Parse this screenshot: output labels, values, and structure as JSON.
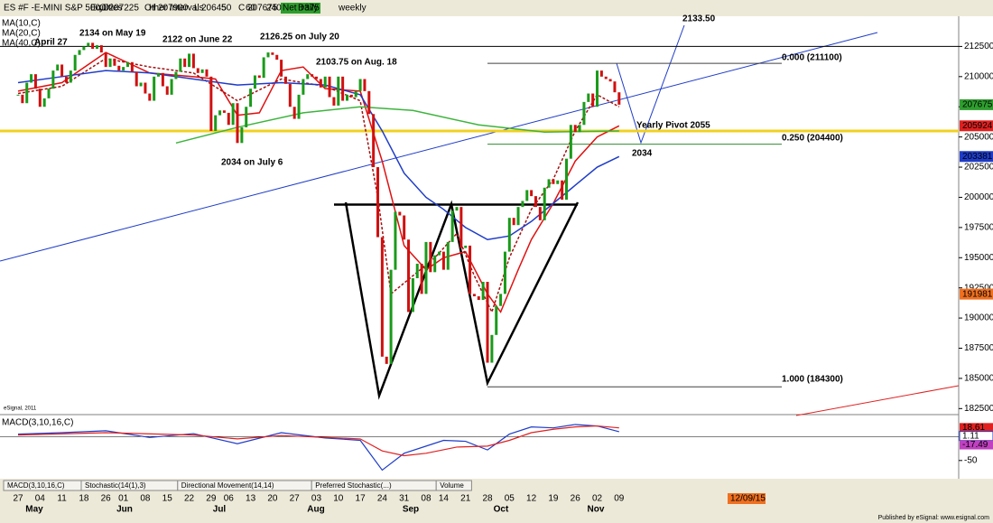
{
  "toolbar": {
    "symbol": "ES #F -E-MINI S&P 500,D",
    "open": "O 207225",
    "high": "H 207900",
    "low": "L 206450",
    "close": "C 207675",
    "net": "Net +375",
    "buttons": [
      "Equities",
      "Other Intervals",
      "5",
      "60",
      "240",
      "Daily",
      "weekly"
    ]
  },
  "chart_data": {
    "type": "candlestick",
    "closes": [
      208500,
      207800,
      209500,
      210200,
      209000,
      207500,
      208200,
      209000,
      210500,
      211000,
      210000,
      209500,
      210500,
      211800,
      212200,
      212500,
      212800,
      212300,
      212600,
      212000,
      210800,
      211500,
      210900,
      210500,
      210800,
      211200,
      210400,
      209200,
      209500,
      208600,
      208000,
      210000,
      210300,
      209200,
      208500,
      209800,
      210400,
      211500,
      210800,
      211900,
      210700,
      210300,
      210600,
      210000,
      205500,
      206800,
      207200,
      207000,
      206000,
      207800,
      204500,
      205800,
      207500,
      209000,
      210100,
      209900,
      211600,
      212000,
      211800,
      211400,
      210000,
      209400,
      207500,
      206500,
      208500,
      209800,
      210200,
      210000,
      209800,
      209100,
      210000,
      208300,
      207600,
      210000,
      208000,
      208500,
      208300,
      208800,
      209800,
      208800,
      206900,
      202500,
      196700,
      186800,
      186200,
      194000,
      198800,
      198500,
      196500,
      190500,
      193300,
      194500,
      192000,
      196300,
      193800,
      195200,
      195500,
      194000,
      196300,
      198900,
      199200,
      195800,
      196000,
      192000,
      191800,
      191500,
      193000,
      186300,
      188600,
      191000,
      192000,
      195500,
      198300,
      197700,
      199200,
      199700,
      200600,
      200100,
      199200,
      198100,
      200800,
      201500,
      201100,
      201400,
      199800,
      203200,
      206000,
      205400,
      206000,
      207900,
      208600,
      207500,
      210500,
      210000,
      209800,
      209600,
      208700,
      207675
    ],
    "ma": [
      {
        "name": "MA(10,C)",
        "color": "#e01010",
        "x": [
          0,
          10,
          20,
          30,
          40,
          45,
          50,
          55,
          60,
          65,
          70,
          78,
          83,
          88,
          93,
          97,
          102,
          107,
          110,
          114,
          117,
          122,
          127,
          132,
          137
        ],
        "values": [
          208800,
          209500,
          212000,
          210300,
          210000,
          209800,
          206800,
          207000,
          210500,
          210800,
          209000,
          208800,
          203000,
          196000,
          194000,
          195000,
          195500,
          192000,
          190500,
          194000,
          196500,
          199500,
          203000,
          205000,
          205924
        ]
      },
      {
        "name": "MA(20,C)",
        "color": "#a01010",
        "x": [
          0,
          10,
          20,
          30,
          40,
          50,
          60,
          70,
          78,
          82,
          85,
          90,
          95,
          100,
          104,
          108,
          112,
          117,
          122,
          127,
          132,
          137
        ],
        "values": [
          208600,
          209200,
          211500,
          210800,
          210300,
          208000,
          209800,
          209200,
          208000,
          200000,
          192000,
          193500,
          195000,
          197000,
          193500,
          190500,
          195000,
          199000,
          201500,
          205500,
          208500,
          207500
        ]
      },
      {
        "name": "MA(40,C)",
        "color": "#1e3cc8",
        "x": [
          0,
          10,
          20,
          30,
          40,
          50,
          60,
          70,
          78,
          83,
          88,
          93,
          97,
          102,
          107,
          112,
          117,
          122,
          127,
          132,
          137
        ],
        "values": [
          209500,
          210000,
          210500,
          210300,
          209800,
          209300,
          209500,
          209300,
          208500,
          205500,
          202000,
          200000,
          199000,
          197500,
          196500,
          196800,
          198000,
          199500,
          201000,
          202500,
          203381
        ]
      },
      {
        "color": "#3cb43c",
        "x": [
          36,
          50,
          65,
          78,
          90,
          105,
          120,
          137
        ],
        "values": [
          204500,
          205800,
          207000,
          207500,
          207200,
          206000,
          205400,
          205500
        ]
      }
    ],
    "ylim": [
      182000,
      215000
    ],
    "yticks": [
      212500,
      210000,
      207500,
      205000,
      202500,
      200000,
      197500,
      195000,
      192500,
      190000,
      187500,
      185000,
      182500
    ],
    "levels": [
      {
        "value": 212500,
        "color": "#000000"
      },
      {
        "value": 205500,
        "color": "#f0d020"
      },
      {
        "value": 211100,
        "color": "#404040"
      },
      {
        "value": 204400,
        "color": "#2e8b2e"
      },
      {
        "value": 184300,
        "color": "#404040"
      },
      {
        "value": 199400,
        "color": "#000000"
      }
    ],
    "price_labels": [
      {
        "value": 207675,
        "color": "#2e9e2e"
      },
      {
        "value": 205924,
        "color": "#e02020"
      },
      {
        "value": 203381,
        "color": "#1e3cc8"
      },
      {
        "value": 191981,
        "color": "#f07020"
      }
    ],
    "annotations": [
      "2134 on May 19",
      "2122 on June 22",
      "2126.25 on July 20",
      "2103.75 on Aug. 18",
      "2034 on July 6",
      "April 27",
      "2133.50",
      "Yearly Pivot 2055",
      "2034",
      "0.000 (211100)",
      "0.250 (204400)",
      "1.000 (184300)"
    ],
    "date_labels": [
      "27",
      "04",
      "11",
      "18",
      "26",
      "01",
      "08",
      "15",
      "22",
      "29",
      "06",
      "13",
      "20",
      "27",
      "03",
      "10",
      "17",
      "24",
      "31",
      "08",
      "14",
      "21",
      "28",
      "05",
      "12",
      "19",
      "26",
      "02",
      "09"
    ],
    "month_labels": [
      "May",
      "Jun",
      "Jul",
      "Aug",
      "Sep",
      "Oct",
      "Nov"
    ],
    "macd": {
      "title": "MACD(3,10,16,C)",
      "ylim": [
        -88,
        40
      ],
      "yticks": [
        -50
      ],
      "series": [
        {
          "color": "#1e3cc8",
          "x": [
            0,
            10,
            20,
            30,
            40,
            50,
            60,
            70,
            78,
            83,
            88,
            93,
            97,
            102,
            107,
            112,
            117,
            122,
            127,
            132,
            137
          ],
          "values": [
            5,
            8,
            12,
            -2,
            6,
            -15,
            8,
            -3,
            -8,
            -70,
            -35,
            -20,
            -8,
            -10,
            -28,
            5,
            20,
            18,
            25,
            22,
            10
          ]
        },
        {
          "color": "#e02020",
          "x": [
            0,
            20,
            40,
            50,
            60,
            78,
            83,
            88,
            93,
            100,
            107,
            112,
            117,
            122,
            127,
            132,
            137
          ],
          "values": [
            3,
            8,
            3,
            -5,
            2,
            -5,
            -30,
            -40,
            -35,
            -22,
            -20,
            -8,
            8,
            15,
            20,
            22,
            18
          ]
        }
      ],
      "labels": [
        {
          "value": 18.61,
          "color": "#e02020"
        },
        {
          "value": 1.11,
          "color": "#ffffff"
        },
        {
          "value": -17.49,
          "color": "#c040c0"
        }
      ]
    },
    "tabs": [
      "MACD(3,10,16,C)",
      "Stochastic(14(1),3)",
      "Directional Movement(14,14)",
      "Preferred Stochastic(...)",
      "Volume"
    ],
    "cursor_date": "12/09/15",
    "credit": "eSignal, 2011",
    "publisher": "Published by eSignal: www.esignal.com"
  }
}
